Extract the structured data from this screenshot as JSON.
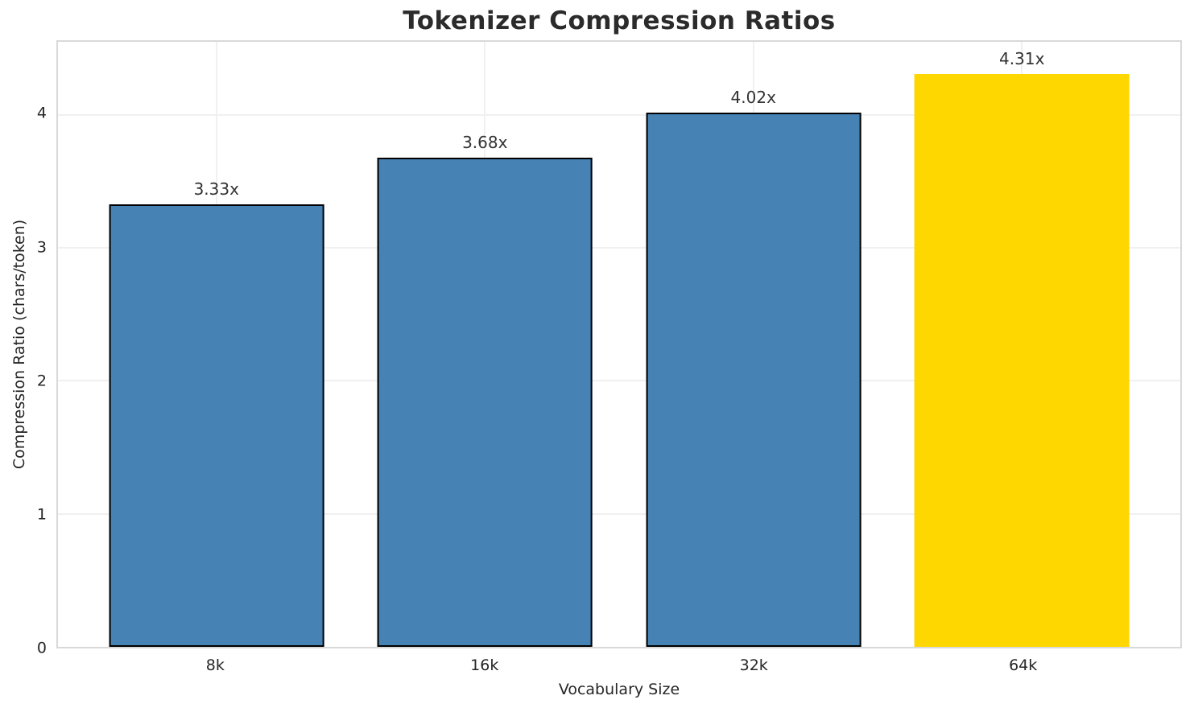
{
  "title": "Tokenizer Compression Ratios",
  "chart_data": {
    "type": "bar",
    "title": "Tokenizer Compression Ratios",
    "xlabel": "Vocabulary Size",
    "ylabel": "Compression Ratio (chars/token)",
    "categories": [
      "8k",
      "16k",
      "32k",
      "64k"
    ],
    "values": [
      3.33,
      3.68,
      4.02,
      4.31
    ],
    "value_labels": [
      "3.33x",
      "3.68x",
      "4.02x",
      "4.31x"
    ],
    "yticks": [
      0,
      1,
      2,
      3,
      4
    ],
    "ylim": [
      0,
      4.55
    ],
    "grid": true,
    "legend": "none",
    "highlight_index": 3,
    "colors": {
      "bar_default": "#4682B4",
      "bar_highlight": "#FFD700",
      "bar_edge": "#000000",
      "grid": "#f0f0f0",
      "spine": "#d9d9d9",
      "text": "#262626",
      "title_text": "#2b2b2b",
      "background": "#ffffff"
    }
  }
}
